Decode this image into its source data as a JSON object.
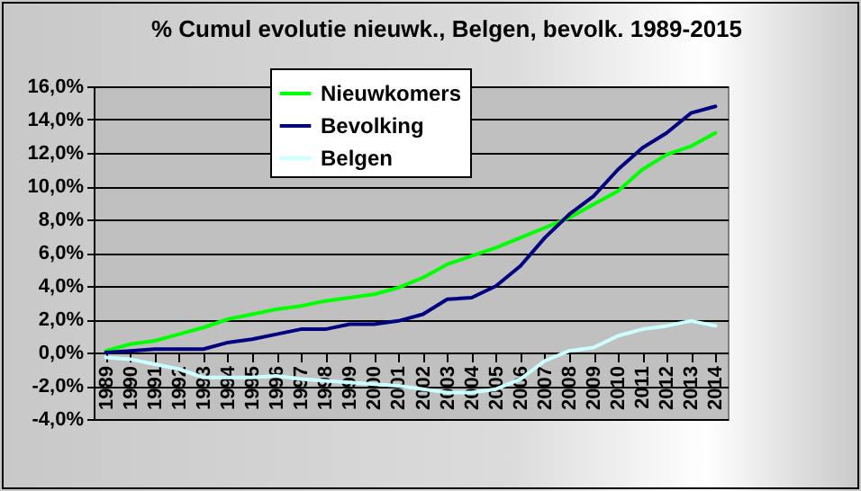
{
  "chart_data": {
    "type": "line",
    "title": "% Cumul evolutie nieuwk., Belgen, bevolk.  1989-2015",
    "categories": [
      "1989",
      "1990",
      "1991",
      "1992",
      "1993",
      "1994",
      "1995",
      "1996",
      "1997",
      "1998",
      "1999",
      "2000",
      "2001",
      "2002",
      "2003",
      "2004",
      "2005",
      "2006",
      "2007",
      "2008",
      "2009",
      "2010",
      "2011",
      "2012",
      "2013",
      "2014"
    ],
    "series": [
      {
        "name": "Nieuwkomers",
        "color": "#00ff00",
        "values": [
          0.1,
          0.5,
          0.7,
          1.1,
          1.5,
          2.0,
          2.3,
          2.6,
          2.8,
          3.1,
          3.3,
          3.5,
          3.9,
          4.5,
          5.3,
          5.8,
          6.3,
          6.9,
          7.5,
          8.1,
          8.9,
          9.7,
          11.0,
          11.9,
          12.4,
          13.2
        ]
      },
      {
        "name": "Bevolking",
        "color": "#000080",
        "values": [
          0.0,
          0.1,
          0.2,
          0.2,
          0.2,
          0.6,
          0.8,
          1.1,
          1.4,
          1.4,
          1.7,
          1.7,
          1.9,
          2.3,
          3.2,
          3.3,
          4.0,
          5.2,
          6.9,
          8.3,
          9.4,
          11.0,
          12.3,
          13.2,
          14.4,
          14.8
        ]
      },
      {
        "name": "Belgen",
        "color": "#ccffff",
        "values": [
          -0.3,
          -0.4,
          -0.7,
          -1.0,
          -1.5,
          -1.5,
          -1.5,
          -1.4,
          -1.6,
          -1.7,
          -1.8,
          -1.9,
          -2.0,
          -2.2,
          -2.4,
          -2.4,
          -2.2,
          -1.6,
          -0.5,
          0.1,
          0.3,
          1.0,
          1.4,
          1.6,
          1.9,
          1.6
        ]
      }
    ],
    "ylim": [
      -4,
      16
    ],
    "yticks": [
      {
        "value": -4,
        "label": "-4,0%"
      },
      {
        "value": -2,
        "label": "-2,0%"
      },
      {
        "value": 0,
        "label": "0,0%"
      },
      {
        "value": 2,
        "label": "2,0%"
      },
      {
        "value": 4,
        "label": "4,0%"
      },
      {
        "value": 6,
        "label": "6,0%"
      },
      {
        "value": 8,
        "label": "8,0%"
      },
      {
        "value": 10,
        "label": "10,0%"
      },
      {
        "value": 12,
        "label": "12,0%"
      },
      {
        "value": 14,
        "label": "14,0%"
      },
      {
        "value": 16,
        "label": "16,0%"
      }
    ],
    "grid": "y",
    "legend": "top left"
  }
}
